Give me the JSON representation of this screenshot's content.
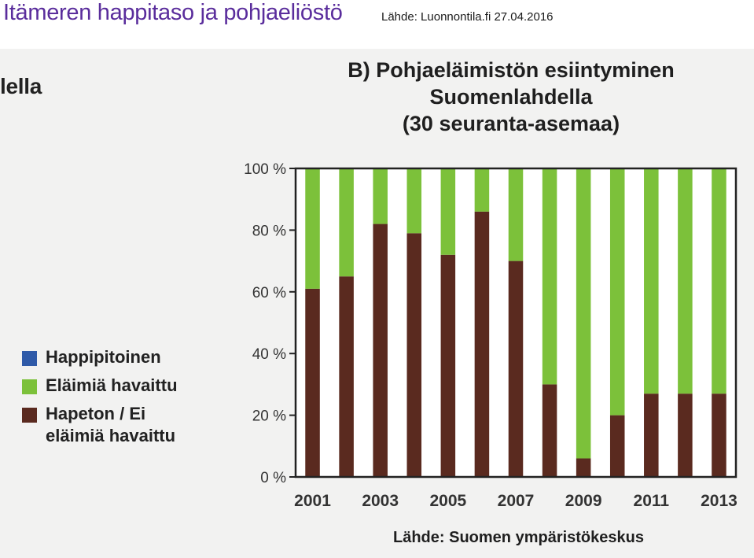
{
  "header": {
    "title": "Itämeren happitaso ja pohjaeliöstö",
    "source": "Lähde: Luonnontila.fi 27.04.2016"
  },
  "cropped_text": "lella",
  "chart_data": {
    "type": "bar",
    "stacked": true,
    "title_lines": [
      "B) Pohjaeläimistön esiintyminen",
      "Suomenlahdella",
      "(30 seuranta-asemaa)"
    ],
    "x": [
      2001,
      2002,
      2003,
      2004,
      2005,
      2006,
      2007,
      2008,
      2009,
      2010,
      2011,
      2012,
      2013
    ],
    "x_tick_labels": [
      "2001",
      "2003",
      "2005",
      "2007",
      "2009",
      "2011",
      "2013"
    ],
    "y_tick_labels": [
      "0 %",
      "20 %",
      "40 %",
      "60 %",
      "80 %",
      "100 %"
    ],
    "ylim": [
      0,
      100
    ],
    "series": [
      {
        "name": "Hapeton / Ei eläimiä havaittu",
        "legend_lines": [
          "Hapeton / Ei",
          "eläimiä havaittu"
        ],
        "color": "#5a2a1f",
        "values": [
          61,
          65,
          82,
          79,
          72,
          86,
          70,
          30,
          6,
          20,
          27,
          27,
          27
        ]
      },
      {
        "name": "Eläimiä havaittu",
        "legend_lines": [
          "Eläimiä havaittu"
        ],
        "color": "#7cc13a",
        "values": [
          39,
          35,
          18,
          21,
          28,
          14,
          30,
          70,
          94,
          80,
          73,
          73,
          73
        ]
      },
      {
        "name": "Happipitoinen",
        "legend_lines": [
          "Happipitoinen"
        ],
        "color": "#2f5aa8",
        "values": [
          0,
          0,
          0,
          0,
          0,
          0,
          0,
          0,
          0,
          0,
          0,
          0,
          0
        ]
      }
    ],
    "legend_position": "left",
    "grid": false,
    "credit": "Lähde: Suomen ympäristökeskus"
  }
}
